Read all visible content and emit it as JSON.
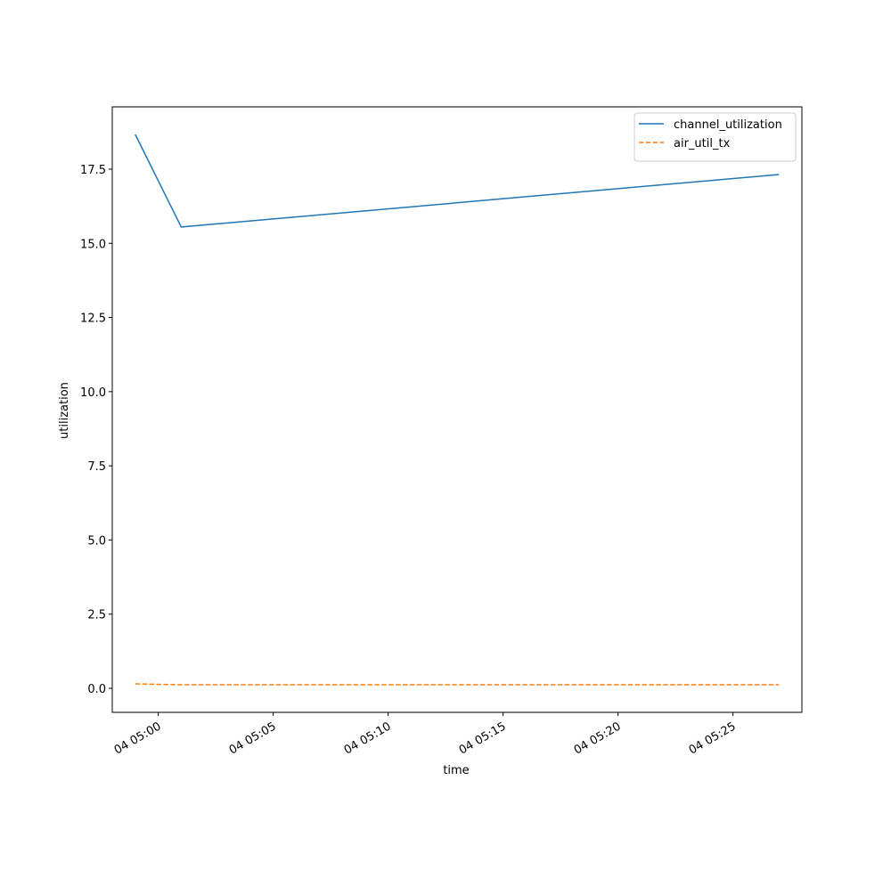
{
  "chart_data": {
    "type": "line",
    "xlabel": "time",
    "ylabel": "utilization",
    "x": [
      "04 04:59",
      "04 05:01",
      "04 05:27"
    ],
    "series": [
      {
        "name": "channel_utilization",
        "color": "#1f77b4",
        "dash": "solid",
        "values": [
          18.67,
          15.55,
          17.32
        ]
      },
      {
        "name": "air_util_tx",
        "color": "#ff7f0e",
        "dash": "dashed",
        "values": [
          0.15,
          0.12,
          0.12
        ]
      }
    ],
    "xlim": [
      "04 04:58",
      "04 05:28"
    ],
    "xticks": [
      "04 05:00",
      "04 05:05",
      "04 05:10",
      "04 05:15",
      "04 05:20",
      "04 05:25"
    ],
    "ylim": [
      -0.81,
      19.6
    ],
    "yticks": [
      {
        "value": 0,
        "label": "0.0"
      },
      2.5,
      {
        "value": 5,
        "label": "5.0"
      },
      7.5,
      {
        "value": 10,
        "label": "10.0"
      },
      12.5,
      {
        "value": 15,
        "label": "15.0"
      },
      17.5
    ],
    "legend": "upper right",
    "grid": false
  }
}
